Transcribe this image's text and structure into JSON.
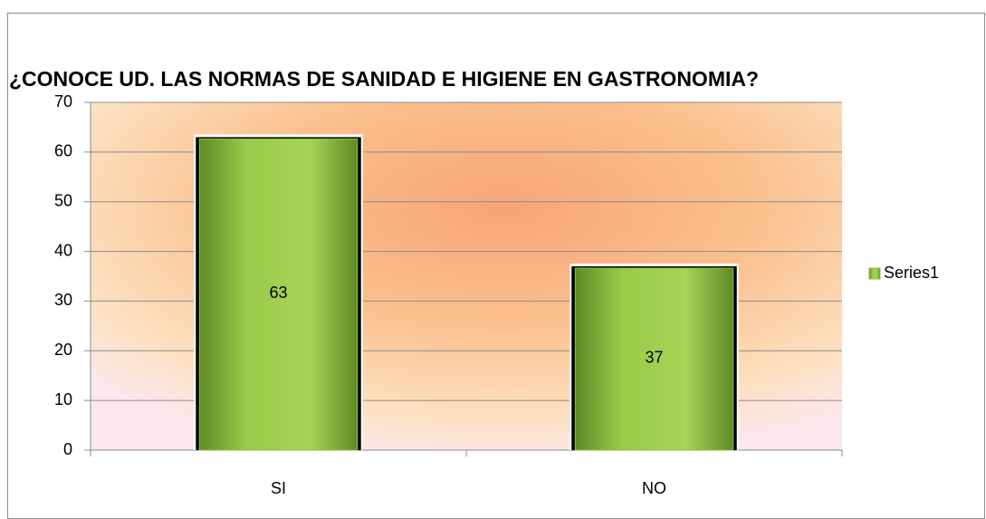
{
  "chart_data": {
    "type": "bar",
    "title": "¿CONOCE UD. LAS NORMAS DE SANIDAD E HIGIENE EN  GASTRONOMIA?",
    "categories": [
      "SI",
      "NO"
    ],
    "series": [
      {
        "name": "Series1",
        "color": "#8cbf3f",
        "values": [
          63,
          37
        ]
      }
    ],
    "ylim": [
      0,
      70
    ],
    "yticks": [
      0,
      10,
      20,
      30,
      40,
      50,
      60,
      70
    ],
    "grid": true,
    "legend": "right",
    "data_labels": true
  }
}
